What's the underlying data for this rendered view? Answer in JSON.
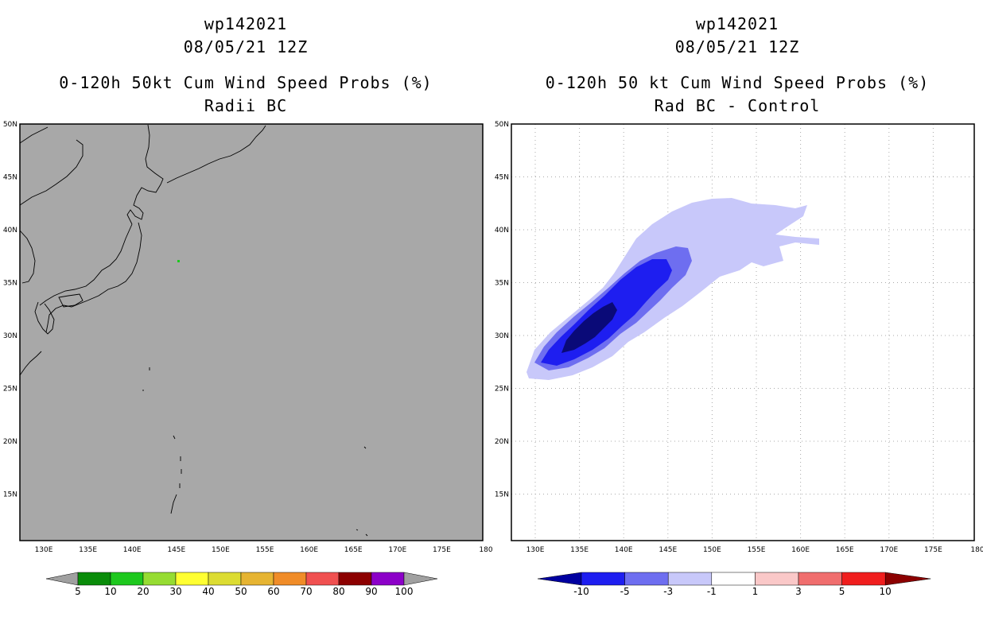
{
  "left_panel": {
    "title_id": "wp142021",
    "title_date": "08/05/21 12Z",
    "title_product": "0-120h 50kt Cum Wind Speed Probs (%)",
    "title_subtitle": "Radii BC",
    "colorbar": {
      "labels": [
        "5",
        "10",
        "20",
        "30",
        "40",
        "50",
        "60",
        "70",
        "80",
        "90",
        "100"
      ],
      "colors": [
        "#0a8c0a",
        "#1ec81e",
        "#96dc32",
        "#ffff32",
        "#dcdc32",
        "#e6b432",
        "#f08c28",
        "#f05050",
        "#8c0000",
        "#8c00c8"
      ],
      "end_color": "#a0a0a0"
    },
    "background_color": "#a8a8a8"
  },
  "right_panel": {
    "title_id": "wp142021",
    "title_date": "08/05/21 12Z",
    "title_product": "0-120h 50 kt Cum Wind Speed Probs (%)",
    "title_subtitle": "Rad BC - Control",
    "colorbar": {
      "labels": [
        "-10",
        "-5",
        "-3",
        "-1",
        "1",
        "3",
        "5",
        "10"
      ],
      "colors": [
        "#0000a0",
        "#1e1ef0",
        "#6e6ef0",
        "#c8c8fa",
        "#ffffff",
        "#fac8c8",
        "#f06e6e",
        "#f01e1e"
      ],
      "low_color": "#0000a0",
      "high_color": "#8c0000"
    },
    "shading_colors": {
      "level_1": "#c8c8fa",
      "level_3": "#6e6ef0",
      "level_5": "#1e1ef0",
      "level_10": "#0a0a78"
    }
  },
  "map_axes": {
    "lon_labels": [
      "130E",
      "135E",
      "140E",
      "145E",
      "150E",
      "155E",
      "160E",
      "165E",
      "170E",
      "175E",
      "180"
    ],
    "lat_labels": [
      "50N",
      "45N",
      "40N",
      "35N",
      "30N",
      "25N",
      "20N",
      "15N"
    ]
  }
}
